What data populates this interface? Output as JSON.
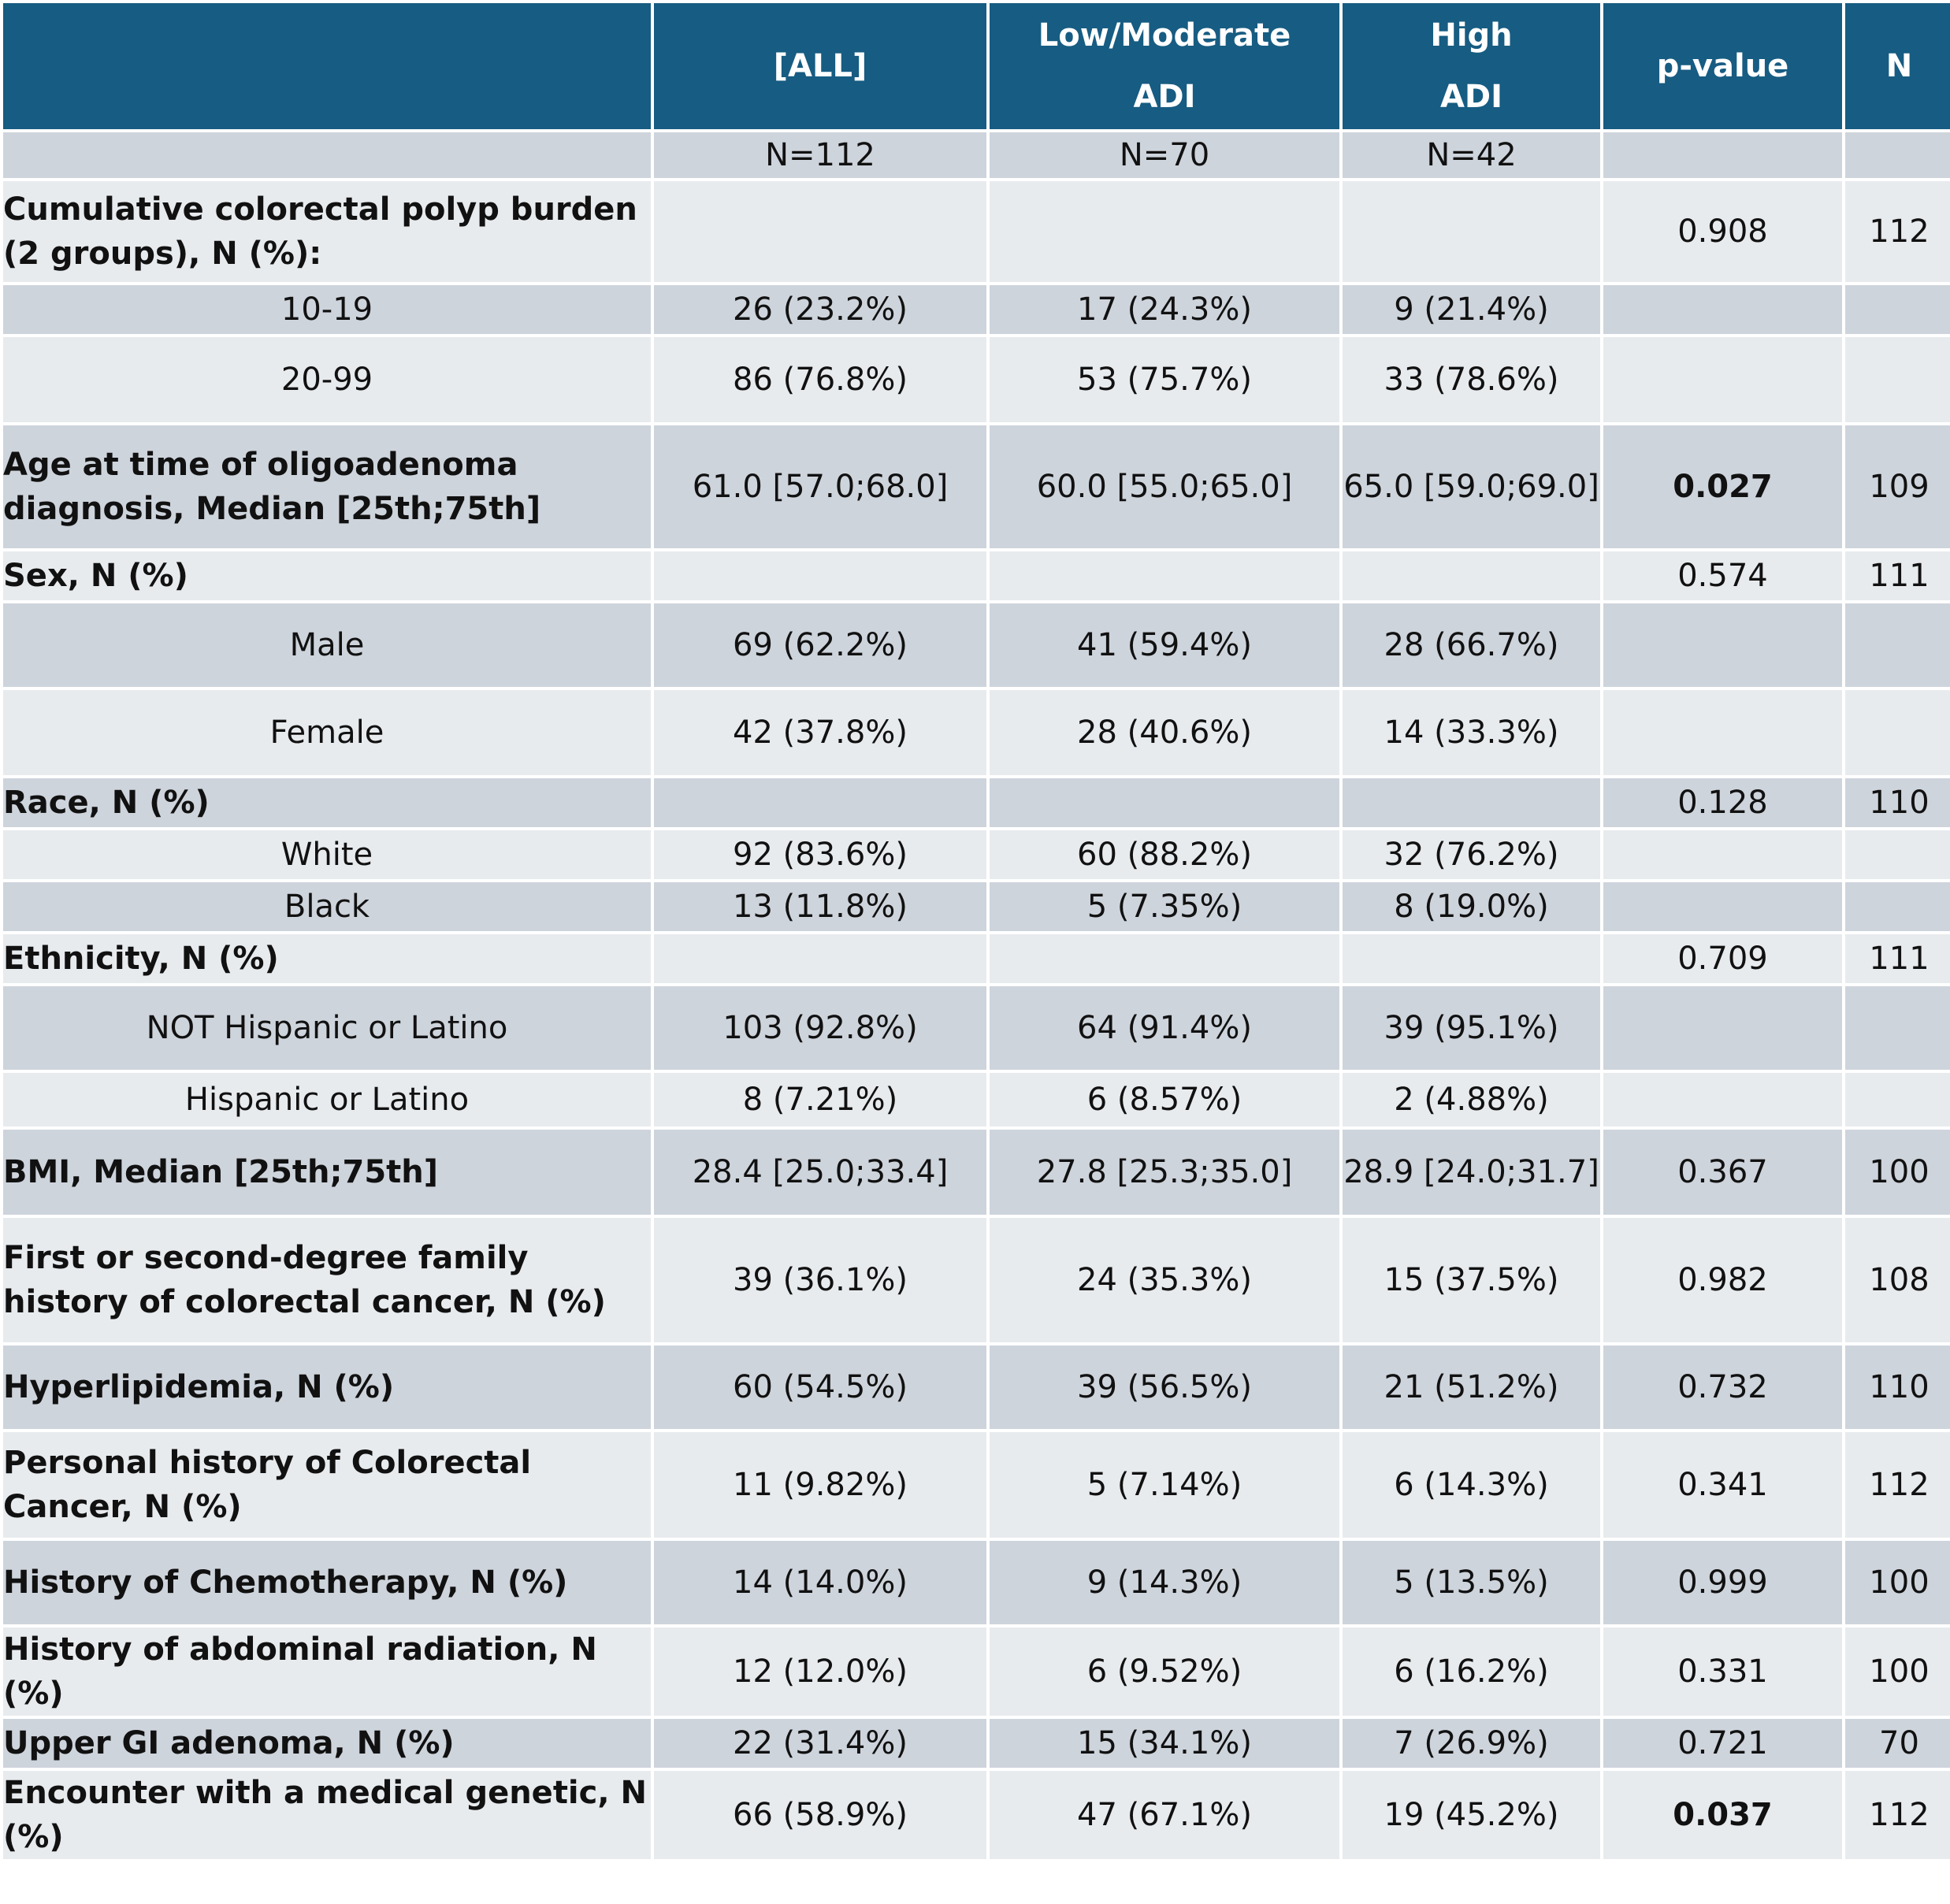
{
  "header": {
    "empty": "",
    "all": "[ALL]",
    "low_line1": "Low/Moderate",
    "low_line2": "ADI",
    "high_line1": "High",
    "high_line2": "ADI",
    "pvalue": "p-value",
    "n": "N"
  },
  "counts": {
    "label": "",
    "all": "N=112",
    "low": "N=70",
    "high": "N=42",
    "p": "",
    "n": ""
  },
  "rows": [
    {
      "label": "Cumulative colorectal polyp burden (2 groups), N (%):",
      "all": "",
      "low": "",
      "high": "",
      "p": "0.908",
      "n": "112"
    },
    {
      "label": "10-19",
      "all": "26 (23.2%)",
      "low": "17 (24.3%)",
      "high": "9 (21.4%)",
      "p": "",
      "n": ""
    },
    {
      "label": "20-99",
      "all": "86 (76.8%)",
      "low": "53 (75.7%)",
      "high": "33 (78.6%)",
      "p": "",
      "n": ""
    },
    {
      "label": "Age at time of oligoadenoma diagnosis, Median [25th;75th]",
      "all": "61.0 [57.0;68.0]",
      "low": "60.0 [55.0;65.0]",
      "high": "65.0 [59.0;69.0]",
      "p": "0.027",
      "n": "109"
    },
    {
      "label": "Sex, N (%)",
      "all": "",
      "low": "",
      "high": "",
      "p": "0.574",
      "n": "111"
    },
    {
      "label": "Male",
      "all": "69 (62.2%)",
      "low": "41 (59.4%)",
      "high": "28 (66.7%)",
      "p": "",
      "n": ""
    },
    {
      "label": "Female",
      "all": "42 (37.8%)",
      "low": "28 (40.6%)",
      "high": "14 (33.3%)",
      "p": "",
      "n": ""
    },
    {
      "label": "Race, N (%)",
      "all": "",
      "low": "",
      "high": "",
      "p": "0.128",
      "n": "110"
    },
    {
      "label": "White",
      "all": "92 (83.6%)",
      "low": "60 (88.2%)",
      "high": "32 (76.2%)",
      "p": "",
      "n": ""
    },
    {
      "label": "Black",
      "all": "13 (11.8%)",
      "low": "5 (7.35%)",
      "high": "8 (19.0%)",
      "p": "",
      "n": ""
    },
    {
      "label": "Ethnicity, N (%)",
      "all": "",
      "low": "",
      "high": "",
      "p": "0.709",
      "n": "111"
    },
    {
      "label": "NOT Hispanic or Latino",
      "all": "103 (92.8%)",
      "low": "64 (91.4%)",
      "high": "39 (95.1%)",
      "p": "",
      "n": ""
    },
    {
      "label": "Hispanic or Latino",
      "all": "8 (7.21%)",
      "low": "6 (8.57%)",
      "high": "2 (4.88%)",
      "p": "",
      "n": ""
    },
    {
      "label": "BMI, Median [25th;75th]",
      "all": "28.4 [25.0;33.4]",
      "low": "27.8 [25.3;35.0]",
      "high": "28.9 [24.0;31.7]",
      "p": "0.367",
      "n": "100"
    },
    {
      "label": " First or second-degree family history of colorectal cancer, N (%)",
      "all": "39 (36.1%)",
      "low": "24 (35.3%)",
      "high": "15 (37.5%)",
      "p": "0.982",
      "n": "108"
    },
    {
      "label": "Hyperlipidemia, N (%)",
      "all": "60 (54.5%)",
      "low": "39 (56.5%)",
      "high": "21 (51.2%)",
      "p": "0.732",
      "n": "110"
    },
    {
      "label": "Personal history of Colorectal Cancer, N (%)",
      "all": "11 (9.82%)",
      "low": "5 (7.14%)",
      "high": "6 (14.3%)",
      "p": "0.341",
      "n": "112"
    },
    {
      "label": "History of Chemotherapy, N (%)",
      "all": "14 (14.0%)",
      "low": "9 (14.3%)",
      "high": "5 (13.5%)",
      "p": "0.999",
      "n": "100"
    },
    {
      "label": "History of abdominal radiation, N (%)",
      "all": "12 (12.0%)",
      "low": "6 (9.52%)",
      "high": "6 (16.2%)",
      "p": "0.331",
      "n": "100"
    },
    {
      "label": "Upper GI adenoma, N (%)",
      "all": "22 (31.4%)",
      "low": "15 (34.1%)",
      "high": "7 (26.9%)",
      "p": "0.721",
      "n": "70"
    },
    {
      "label": "Encounter with a medical genetic, N (%)",
      "all": "66 (58.9%)",
      "low": "47 (67.1%)",
      "high": "19 (45.2%)",
      "p": "0.037",
      "n": "112"
    }
  ]
}
